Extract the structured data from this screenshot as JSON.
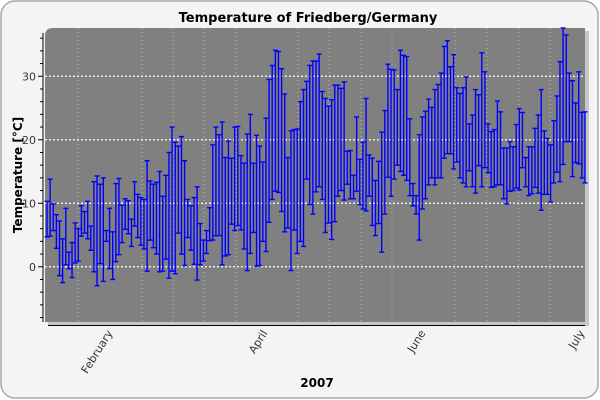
{
  "chart_data": {
    "type": "errorbar",
    "title": "Temperature of Friedberg/Germany",
    "xlabel": "2007",
    "ylabel": "Temperature [°C]",
    "ylim": [
      -8.7,
      37.6
    ],
    "yticks": [
      "0",
      "10",
      "20",
      "30"
    ],
    "xtick_labels": [
      "February",
      "April",
      "June",
      "July"
    ],
    "grid": true,
    "colors": {
      "bars": "#0000ff",
      "plot_background": "#808080",
      "page_background": "#f4f4f4",
      "grid": "#ffffff"
    },
    "series": [
      {
        "max": [
          10.3,
          13.8,
          9.9,
          8.2,
          7.2,
          4.4,
          9.2,
          2.3,
          3.8,
          6.9,
          6.0,
          9.6,
          8.7,
          10.3,
          6.4,
          13.4,
          14.3,
          13.0,
          14.0,
          5.7,
          9.2,
          5.5,
          13.1,
          13.9,
          9.7,
          10.7,
          10.4,
          7.5,
          13.4,
          11.4,
          10.9,
          10.6,
          16.7,
          13.5,
          13.0,
          13.3,
          15.0,
          11.1,
          14.4,
          18.0,
          22.0,
          19.6,
          19.0,
          20.5,
          16.7,
          10.6,
          9.6,
          10.9,
          12.6,
          6.8,
          4.2,
          5.7,
          9.3,
          19.2,
          22.0,
          20.8,
          22.8,
          17.2,
          19.8,
          17.1,
          22.0,
          22.1,
          17.5,
          16.3,
          20.9,
          24.0,
          16.3,
          20.7,
          19.0,
          16.5,
          23.4,
          29.5,
          31.7,
          34.1,
          33.9,
          31.2,
          27.2,
          17.2,
          21.4,
          21.6,
          21.7,
          26.0,
          27.9,
          29.2,
          31.7,
          32.4,
          32.4,
          33.5,
          27.6,
          26.5,
          25.3,
          26.3,
          28.6,
          28.6,
          28.1,
          29.1,
          18.2,
          18.3,
          14.4,
          23.6,
          16.9,
          19.6,
          26.5,
          17.6,
          17.1,
          13.6,
          16.6,
          21.2,
          24.6,
          31.9,
          31.1,
          31.0,
          27.9,
          34.1,
          33.3,
          33.1,
          23.3,
          13.1,
          11.2,
          20.8,
          23.6,
          24.5,
          26.4,
          25.1,
          27.9,
          28.7,
          30.5,
          34.7,
          35.6,
          31.5,
          33.4,
          28.2,
          27.3,
          28.2,
          29.9,
          22.5,
          23.9,
          27.9,
          27.1,
          33.7,
          30.7,
          22.5,
          21.3,
          21.6,
          26.1,
          24.4,
          18.7,
          18.7,
          19.7,
          18.9,
          22.4,
          24.9,
          24.3,
          17.2,
          18.9,
          18.9,
          21.8,
          23.9,
          27.9,
          21.4,
          20.2,
          19.2,
          23.0,
          26.9,
          32.3,
          38.0,
          36.5,
          30.5,
          29.3,
          25.8,
          30.7,
          24.3,
          24.4
        ],
        "min": [
          4.7,
          4.8,
          5.7,
          2.9,
          -1.4,
          -2.5,
          0.3,
          -0.3,
          -1.7,
          0.6,
          0.9,
          4.8,
          5.3,
          4.4,
          2.6,
          -0.8,
          -3.0,
          0.5,
          -2.3,
          4.0,
          -0.3,
          -2.0,
          0.8,
          1.9,
          3.8,
          5.9,
          5.2,
          3.2,
          6.4,
          4.6,
          3.4,
          2.8,
          -0.7,
          4.2,
          3.0,
          2.0,
          -0.8,
          -0.7,
          1.2,
          -1.8,
          -0.7,
          -1.1,
          5.3,
          2.0,
          0.2,
          4.6,
          2.6,
          0.4,
          -2.1,
          0.3,
          0.9,
          2.1,
          4.1,
          4.2,
          4.9,
          4.9,
          0.3,
          1.7,
          1.9,
          6.7,
          5.7,
          6.5,
          5.8,
          2.8,
          -0.6,
          2.1,
          5.4,
          0.1,
          0.2,
          4.0,
          2.4,
          7.0,
          10.6,
          11.9,
          11.7,
          8.7,
          5.5,
          6.1,
          -0.6,
          5.8,
          2.1,
          4.0,
          3.2,
          13.8,
          9.8,
          8.3,
          11.8,
          12.6,
          10.6,
          5.4,
          6.9,
          4.3,
          7.1,
          11.1,
          12.0,
          10.5,
          13.0,
          10.7,
          10.7,
          11.9,
          9.8,
          9.1,
          8.8,
          11.1,
          6.5,
          4.9,
          6.8,
          2.3,
          8.3,
          14.1,
          11.1,
          13.8,
          16.0,
          15.0,
          14.4,
          13.6,
          11.2,
          9.6,
          8.3,
          4.2,
          9.1,
          10.7,
          12.9,
          14.0,
          12.9,
          14.0,
          14.0,
          17.1,
          17.8,
          17.8,
          15.4,
          16.5,
          14.0,
          13.2,
          12.6,
          15.1,
          12.6,
          11.6,
          15.9,
          12.6,
          15.6,
          14.8,
          12.5,
          12.6,
          12.9,
          12.9,
          10.7,
          9.9,
          11.9,
          12.0,
          12.4,
          12.1,
          15.6,
          12.6,
          11.2,
          11.5,
          12.5,
          11.6,
          8.9,
          11.4,
          11.4,
          10.2,
          13.2,
          14.9,
          13.4,
          16.1,
          19.7,
          19.7,
          14.2,
          16.4,
          16.2,
          14.0,
          13.2
        ]
      }
    ]
  }
}
